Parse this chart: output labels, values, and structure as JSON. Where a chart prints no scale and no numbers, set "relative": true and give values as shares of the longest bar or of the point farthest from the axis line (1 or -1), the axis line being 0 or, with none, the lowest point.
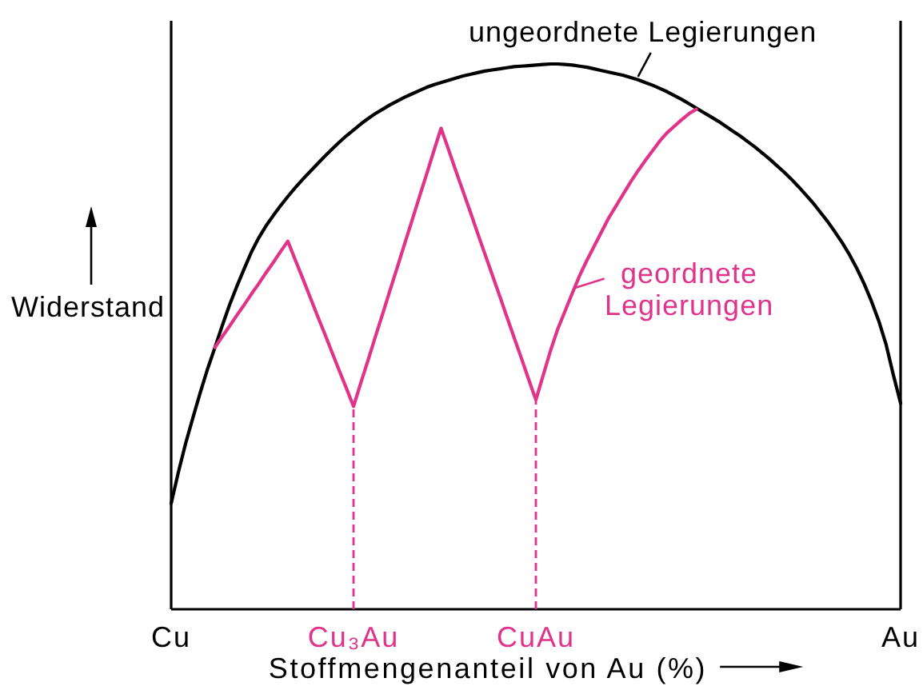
{
  "chart_data": {
    "type": "line",
    "relative": true,
    "xlabel": "Stoffmengenanteil von Au (%)",
    "ylabel": "Widerstand",
    "categories": [
      "Cu",
      null,
      null,
      null,
      null,
      null,
      null,
      null,
      null,
      null,
      null,
      null,
      null,
      null,
      null,
      null,
      null,
      null,
      null,
      null,
      null,
      null,
      null,
      null,
      null,
      "Cu₃Au",
      null,
      null,
      null,
      null,
      null,
      null,
      null,
      null,
      null,
      null,
      null,
      null,
      null,
      null,
      null,
      null,
      null,
      null,
      null,
      null,
      null,
      null,
      null,
      null,
      "CuAu",
      null,
      null,
      null,
      null,
      null,
      null,
      null,
      null,
      null,
      null,
      null,
      null,
      null,
      null,
      null,
      null,
      null,
      null,
      null,
      null,
      null,
      null,
      null,
      null,
      null,
      null,
      null,
      null,
      null,
      null,
      null,
      null,
      null,
      null,
      null,
      null,
      null,
      null,
      null,
      null,
      null,
      null,
      null,
      null,
      null,
      null,
      null,
      null,
      null,
      "Au"
    ],
    "series": [
      {
        "name": "ungeordnete Legierungen",
        "color": "#000000",
        "values": [
          0.194,
          0.252,
          0.305,
          0.352,
          0.398,
          0.441,
          0.48,
          0.52,
          0.558,
          0.592,
          0.624,
          0.655,
          0.681,
          0.703,
          0.722,
          0.74,
          0.757,
          0.773,
          0.788,
          0.802,
          0.816,
          0.83,
          0.843,
          0.856,
          0.868,
          0.879,
          0.89,
          0.9,
          0.909,
          0.917,
          0.925,
          0.932,
          0.939,
          0.945,
          0.951,
          0.957,
          0.962,
          0.966,
          0.97,
          0.974,
          0.978,
          0.981,
          0.984,
          0.987,
          0.989,
          0.991,
          0.993,
          0.995,
          0.996,
          0.997,
          0.998,
          0.999,
          1,
          1,
          0.999,
          0.998,
          0.996,
          0.994,
          0.991,
          0.988,
          0.985,
          0.982,
          0.979,
          0.975,
          0.971,
          0.966,
          0.961,
          0.955,
          0.949,
          0.942,
          0.935,
          0.927,
          0.919,
          0.911,
          0.903,
          0.895,
          0.886,
          0.877,
          0.868,
          0.858,
          0.848,
          0.837,
          0.826,
          0.814,
          0.802,
          0.789,
          0.775,
          0.76,
          0.745,
          0.728,
          0.711,
          0.692,
          0.672,
          0.65,
          0.625,
          0.597,
          0.565,
          0.529,
          0.486,
          0.43,
          0.378
        ]
      },
      {
        "name": "geordnete Legierungen",
        "color": "#e0338a",
        "values": [
          null,
          null,
          null,
          null,
          null,
          null,
          0.48,
          0.5,
          0.519,
          0.539,
          0.558,
          0.578,
          0.597,
          0.617,
          0.636,
          0.656,
          0.675,
          0.641,
          0.608,
          0.574,
          0.54,
          0.507,
          0.473,
          0.439,
          0.406,
          0.372,
          0.415,
          0.457,
          0.5,
          0.542,
          0.585,
          0.627,
          0.67,
          0.712,
          0.755,
          0.797,
          0.84,
          0.882,
          0.844,
          0.805,
          0.767,
          0.729,
          0.69,
          0.652,
          0.614,
          0.576,
          0.537,
          0.499,
          0.461,
          0.422,
          0.384,
          0.429,
          0.474,
          0.514,
          0.547,
          0.58,
          0.612,
          0.64,
          0.666,
          0.692,
          0.718,
          0.74,
          0.762,
          0.784,
          0.804,
          0.823,
          0.841,
          0.859,
          0.874,
          0.886,
          0.898,
          0.909,
          0.917,
          null,
          null,
          null,
          null,
          null,
          null,
          null,
          null,
          null,
          null,
          null,
          null,
          null,
          null,
          null,
          null,
          null,
          null,
          null,
          null,
          null,
          null,
          null,
          null,
          null,
          null,
          null,
          null
        ]
      }
    ],
    "ref_lines": [
      {
        "axis": "x",
        "value": "Cu₃Au",
        "color": "#e0338a",
        "line_style": "dashed"
      },
      {
        "axis": "x",
        "value": "CuAu",
        "color": "#e0338a",
        "line_style": "dashed"
      }
    ]
  }
}
